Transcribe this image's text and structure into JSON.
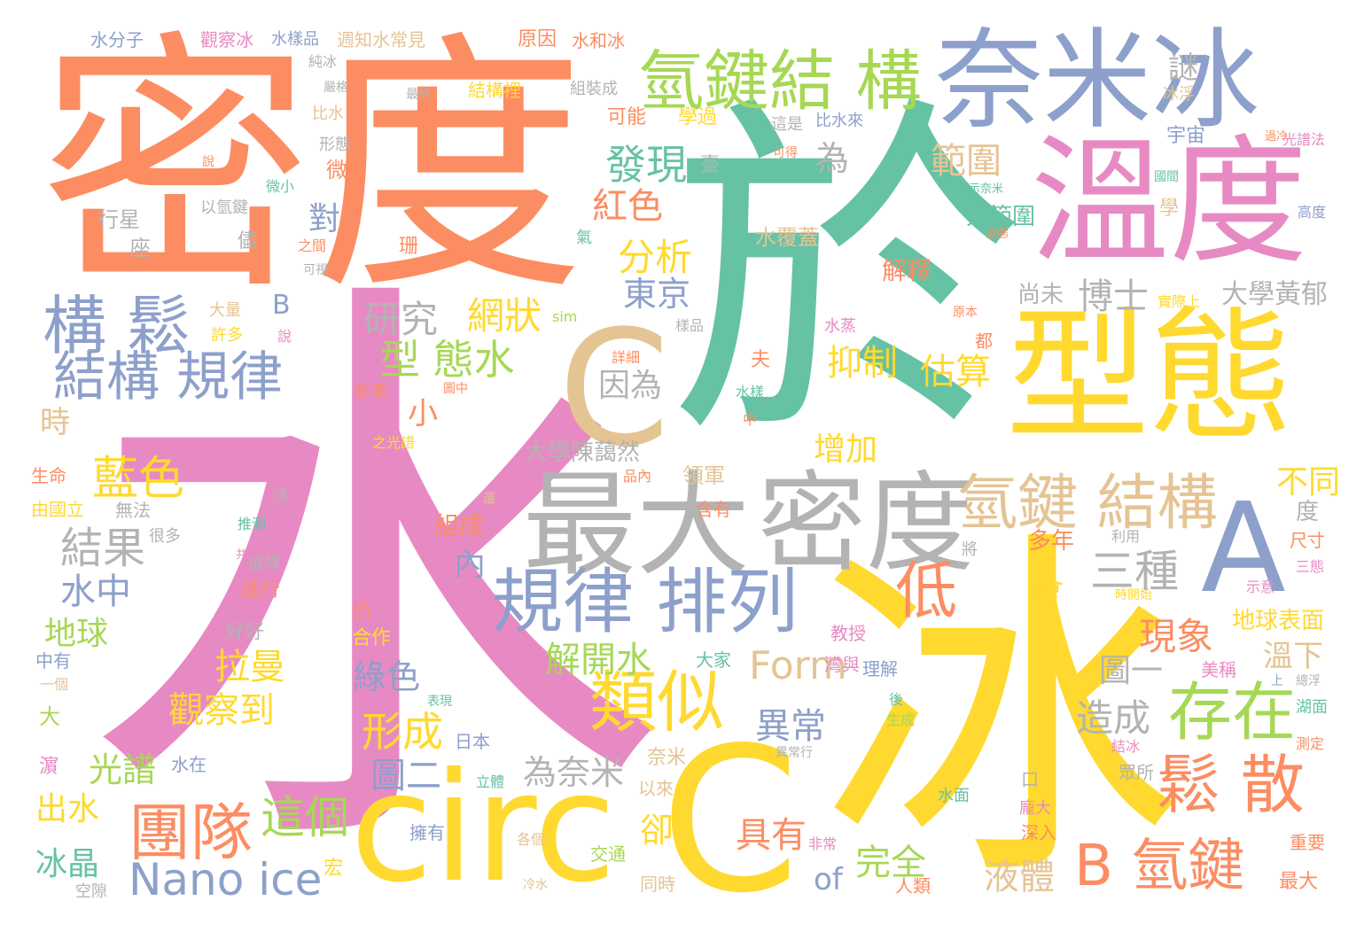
{
  "palette": {
    "orange": "#fc8d62",
    "teal": "#66c2a5",
    "blue": "#8da0cb",
    "pink": "#e78ac3",
    "yellow": "#ffd92f",
    "green": "#a6d854",
    "tan": "#e5c494",
    "gray": "#b3b3b3"
  },
  "words": {
    "w01": "密度",
    "w02": "於",
    "w03": "水",
    "w04": "冰",
    "w05": "奈米冰",
    "w06": "溫度",
    "w07": "型態",
    "w08": "C",
    "w09": "circ",
    "w10": "C",
    "w11": "A",
    "w12": "最大",
    "w13": "密度",
    "w14": "規律 排列",
    "w15": "氫鍵結 構",
    "w16": "構 鬆",
    "w17": "結構 規律",
    "w18": "氫鍵 結構",
    "w19": "B 氫鍵",
    "w20": "鬆 散",
    "w21": "團隊",
    "w22": "這個",
    "w23": "類似",
    "w24": "存在",
    "w25": "Nano ice",
    "w26": "發現",
    "w27": "分析",
    "w28": "東京",
    "w29": "研究",
    "w30": "網狀",
    "w31": "型 態水",
    "w32": "博士",
    "w33": "範圍",
    "w34": "謎",
    "w35": "三種",
    "w36": "低",
    "w37": "藍色",
    "w38": "結果",
    "w39": "Form",
    "w40": "紅色",
    "w41": "為",
    "w42": "抑制",
    "w43": "估算",
    "w44": "因為",
    "w45": "現象",
    "w46": "造成",
    "w47": "液體",
    "w48": "完全",
    "w49": "具有",
    "w50": "of",
    "w51": "大範圍",
    "w52": "水覆蓋",
    "w53": "解釋",
    "w54": "尚未",
    "w55": "大學黃郁",
    "w56": "增加",
    "w57": "不同",
    "w58": "大學陳藹然",
    "w59": "領軍",
    "w60": "水中",
    "w61": "地球",
    "w62": "拉曼",
    "w63": "觀察到",
    "w64": "解開水",
    "w65": "綠色",
    "w66": "光譜",
    "w67": "為奈米",
    "w68": "出水",
    "w69": "冰晶",
    "w70": "形成",
    "w71": "圖二",
    "w72": "異常",
    "w73": "圖一",
    "w74": "溫下",
    "w75": "地球表面",
    "w76": "會",
    "w77": "多年",
    "w78": "對",
    "w79": "小",
    "w80": "時",
    "w81": "內",
    "w82": "卻",
    "w83": "組成",
    "w84": "水分子",
    "w85": "觀察冰",
    "w86": "水樣品",
    "w87": "週知水常見",
    "w88": "原因",
    "w89": "水和冰",
    "w90": "結構裡",
    "w91": "組裝成",
    "w92": "可能",
    "w93": "學過",
    "w94": "比水來",
    "w95": "冰浮",
    "w96": "宇宙",
    "w97": "行星",
    "w98": "座",
    "w99": "大量",
    "w100": "許多",
    "w101": "生命",
    "w102": "無法",
    "w103": "由國立",
    "w104": "很多",
    "w105": "推測",
    "w106": "虛線",
    "w107": "進行",
    "w108": "好好",
    "w109": "中有",
    "w110": "一個",
    "w111": "大",
    "w112": "合作",
    "w113": "仍",
    "w114": "日本",
    "w115": "水在",
    "w116": "奈米",
    "w117": "以來",
    "w118": "擁有",
    "w119": "交通",
    "w120": "同時",
    "w121": "人類",
    "w122": "深入",
    "w123": "重要",
    "w124": "最大",
    "w125": "美稱",
    "w126": "眾所",
    "w127": "尺寸",
    "w128": "三態",
    "w129": "示意",
    "w130": "湖面",
    "w131": "測定",
    "w132": "結冰",
    "w133": "時開始",
    "w134": "利用",
    "w135": "度",
    "w136": "B",
    "w137": "sim",
    "w138": "教授",
    "w139": "理解",
    "w140": "大家",
    "w141": "灣與",
    "w142": "水面",
    "w143": "龐大",
    "w144": "立體",
    "w145": "生成",
    "w146": "後",
    "w147": "非常",
    "w148": "各個",
    "w149": "冷水",
    "w150": "空隙",
    "w151": "宏",
    "w152": "濵",
    "w153": "表現",
    "w154": "異常行",
    "w155": "品內",
    "w156": "含有",
    "w157": "將",
    "w158": "講",
    "w159": "還",
    "w160": "之光譜",
    "w161": "冬季",
    "w162": "圖中",
    "w163": "詳細",
    "w164": "水樣",
    "w165": "中",
    "w166": "夫",
    "w167": "水蒸",
    "w168": "樣品",
    "w169": "原本",
    "w170": "實際上",
    "w171": "都",
    "w172": "氣",
    "w173": "珊",
    "w174": "微小",
    "w175": "以氫鍵",
    "w176": "儘",
    "w177": "之間",
    "w178": "可視",
    "w179": "說",
    "w180": "形態",
    "w181": "比水",
    "w182": "嚴格",
    "w183": "純冰",
    "w184": "最終",
    "w185": "這是",
    "w186": "可得",
    "w187": "臺",
    "w188": "微",
    "w189": "顯示奈米",
    "w190": "國間",
    "w191": "液態",
    "w192": "過冷",
    "w193": "學",
    "w194": "高度",
    "w195": "光譜法",
    "w196": "上",
    "w197": "總浮",
    "w198": "口",
    "w199": "共存",
    "w200": "說"
  }
}
